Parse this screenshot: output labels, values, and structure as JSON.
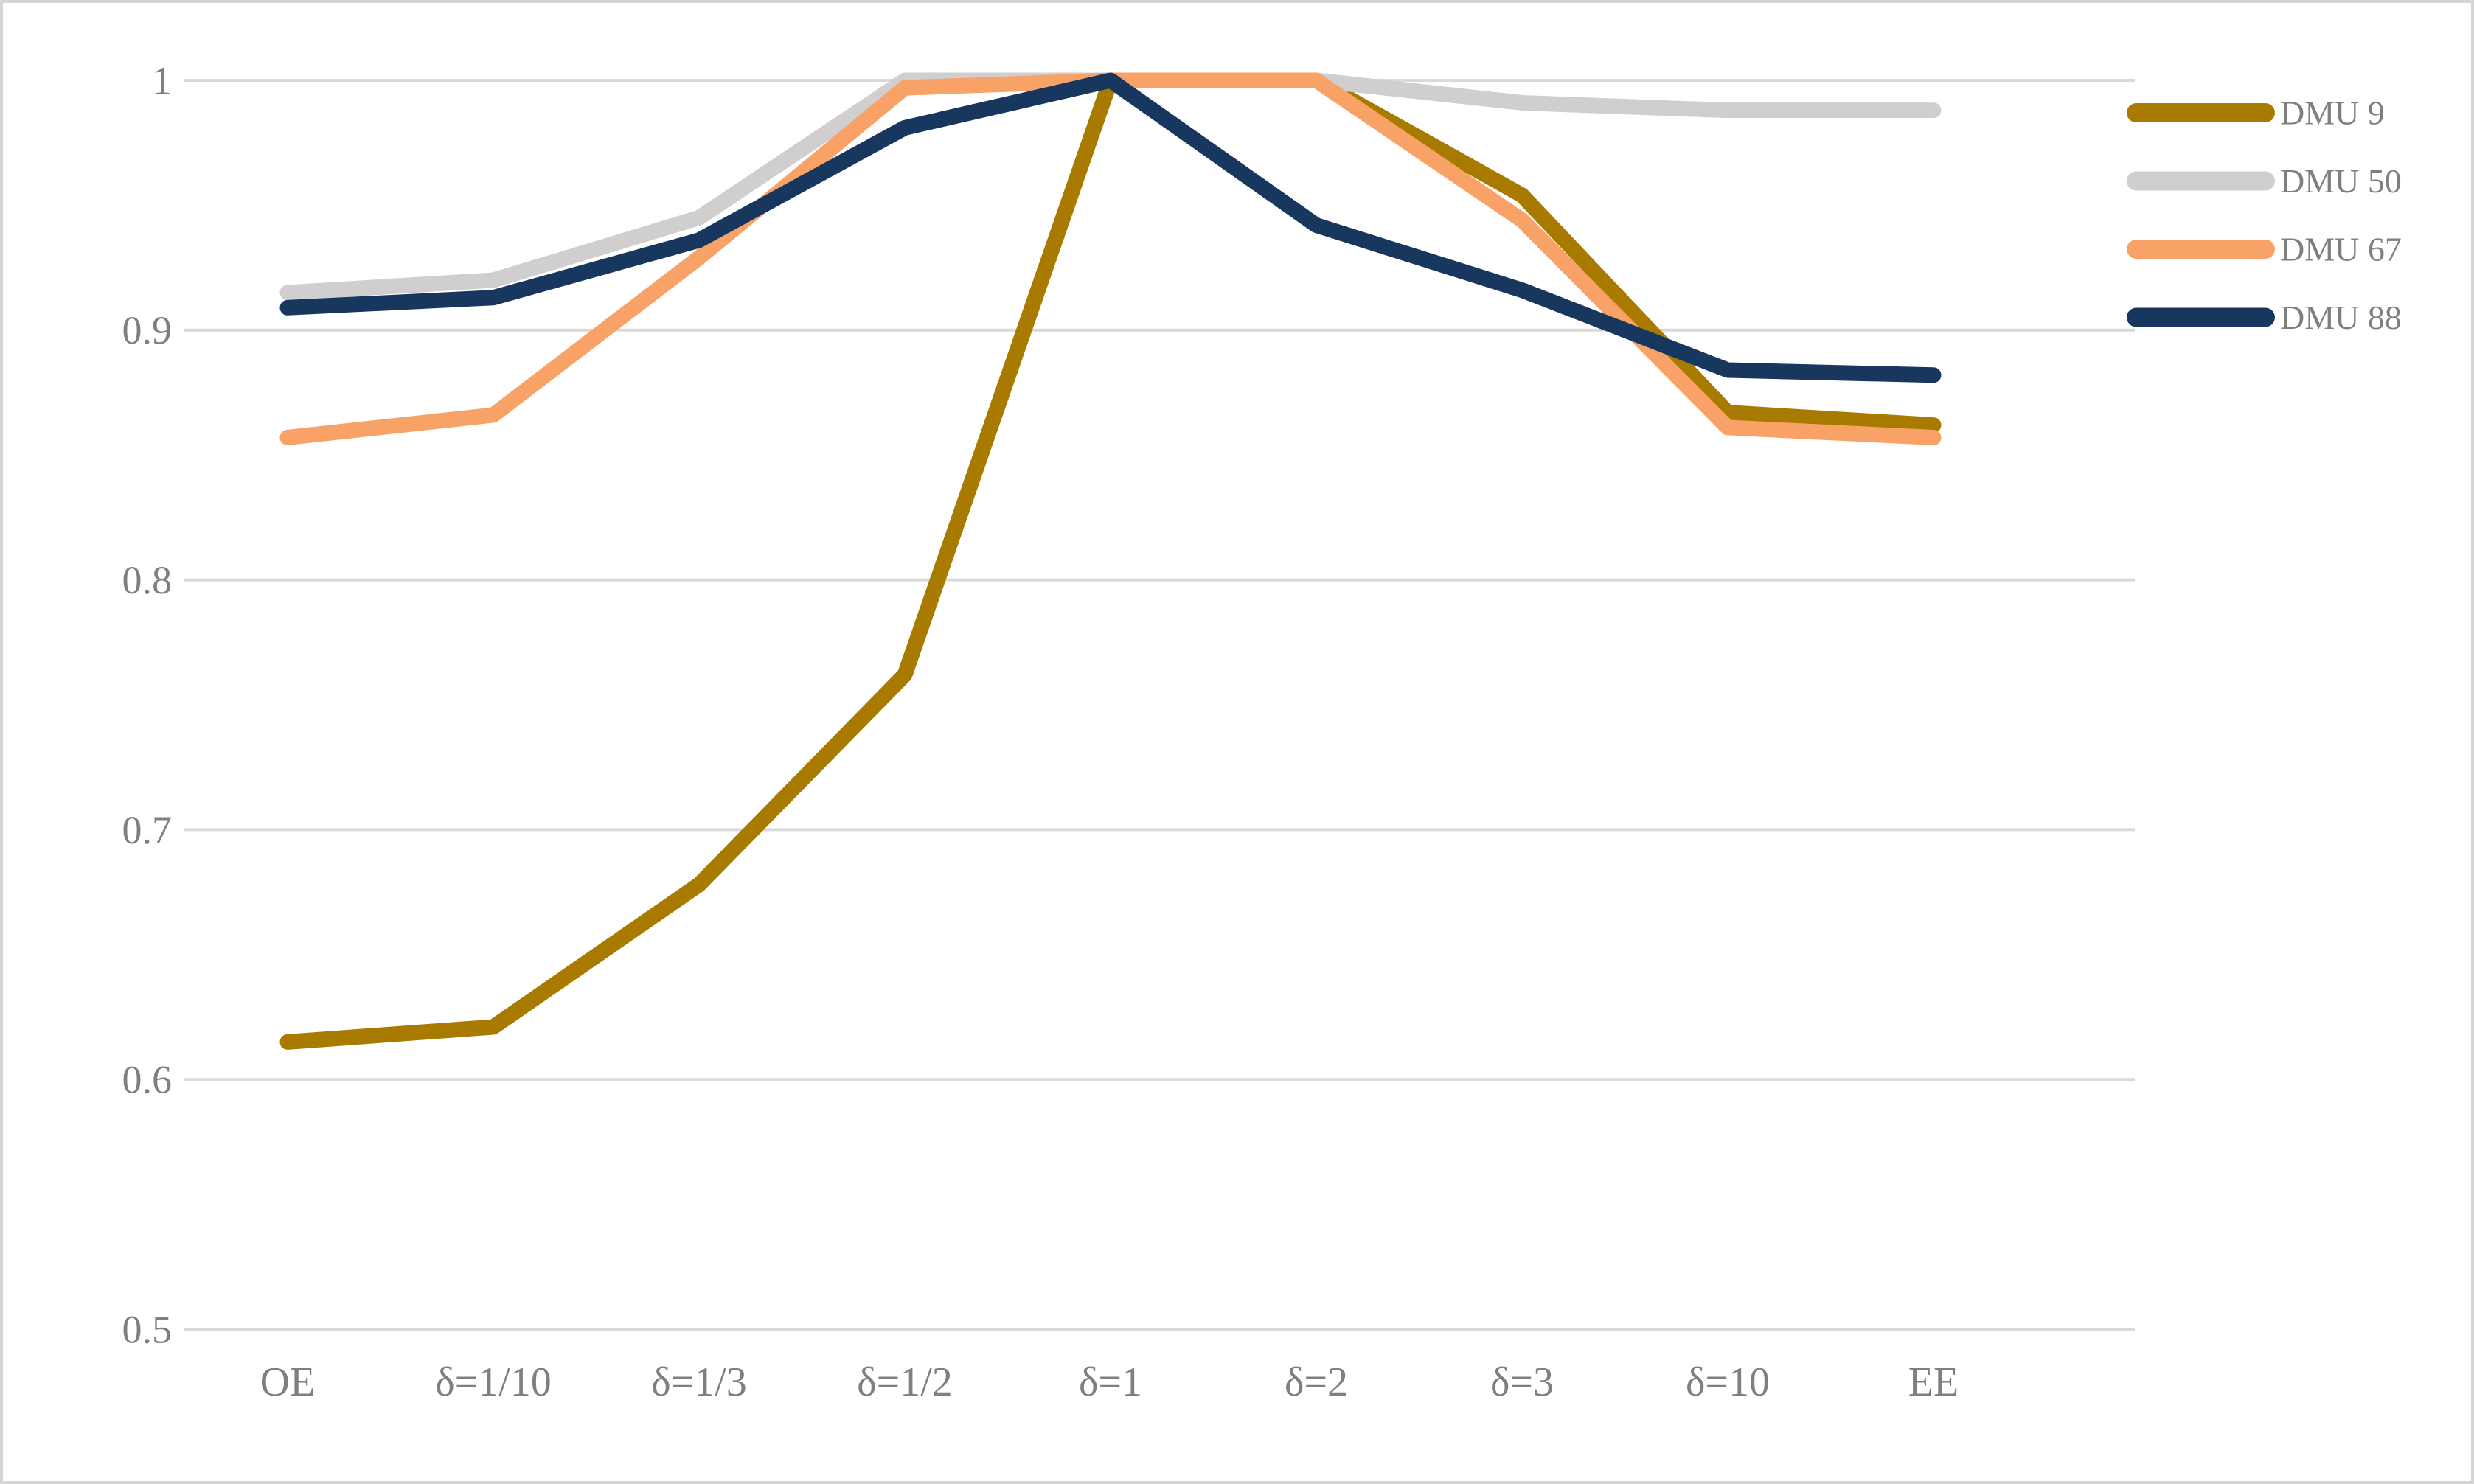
{
  "chart_data": {
    "type": "line",
    "title": "",
    "xlabel": "",
    "ylabel": "",
    "categories": [
      "OE",
      "δ=1/10",
      "δ=1/3",
      "δ=1/2",
      "δ=1",
      "δ=2",
      "δ=3",
      "δ=10",
      "EE"
    ],
    "series": [
      {
        "name": "DMU 9",
        "color": "#A87B00",
        "values": [
          0.615,
          0.621,
          0.678,
          0.762,
          1.0,
          1.0,
          0.954,
          0.867,
          0.862
        ]
      },
      {
        "name": "DMU 50",
        "color": "#D0CECE",
        "values": [
          0.915,
          0.92,
          0.945,
          1.0,
          1.0,
          1.0,
          0.991,
          0.988,
          0.988
        ]
      },
      {
        "name": "DMU 67",
        "color": "#F8A268",
        "values": [
          0.857,
          0.866,
          0.929,
          0.997,
          1.0,
          1.0,
          0.944,
          0.861,
          0.857
        ]
      },
      {
        "name": "DMU 88",
        "color": "#17375E",
        "values": [
          0.909,
          0.913,
          0.936,
          0.981,
          1.0,
          0.942,
          0.916,
          0.884,
          0.882
        ]
      }
    ],
    "yticks": [
      "1",
      "0.9",
      "0.8",
      "0.7",
      "0.6",
      "0.5"
    ],
    "ytick_values": [
      1.0,
      0.9,
      0.8,
      0.7,
      0.6,
      0.5
    ],
    "ylim": [
      0.5,
      1.0
    ],
    "grid": true,
    "legend_position": "right"
  },
  "styles": {
    "gridline_color": "#D9D9D9",
    "border_color": "#D5D5D5",
    "label_color": "#7F7F7F",
    "background_color": "#FFFFFF"
  }
}
